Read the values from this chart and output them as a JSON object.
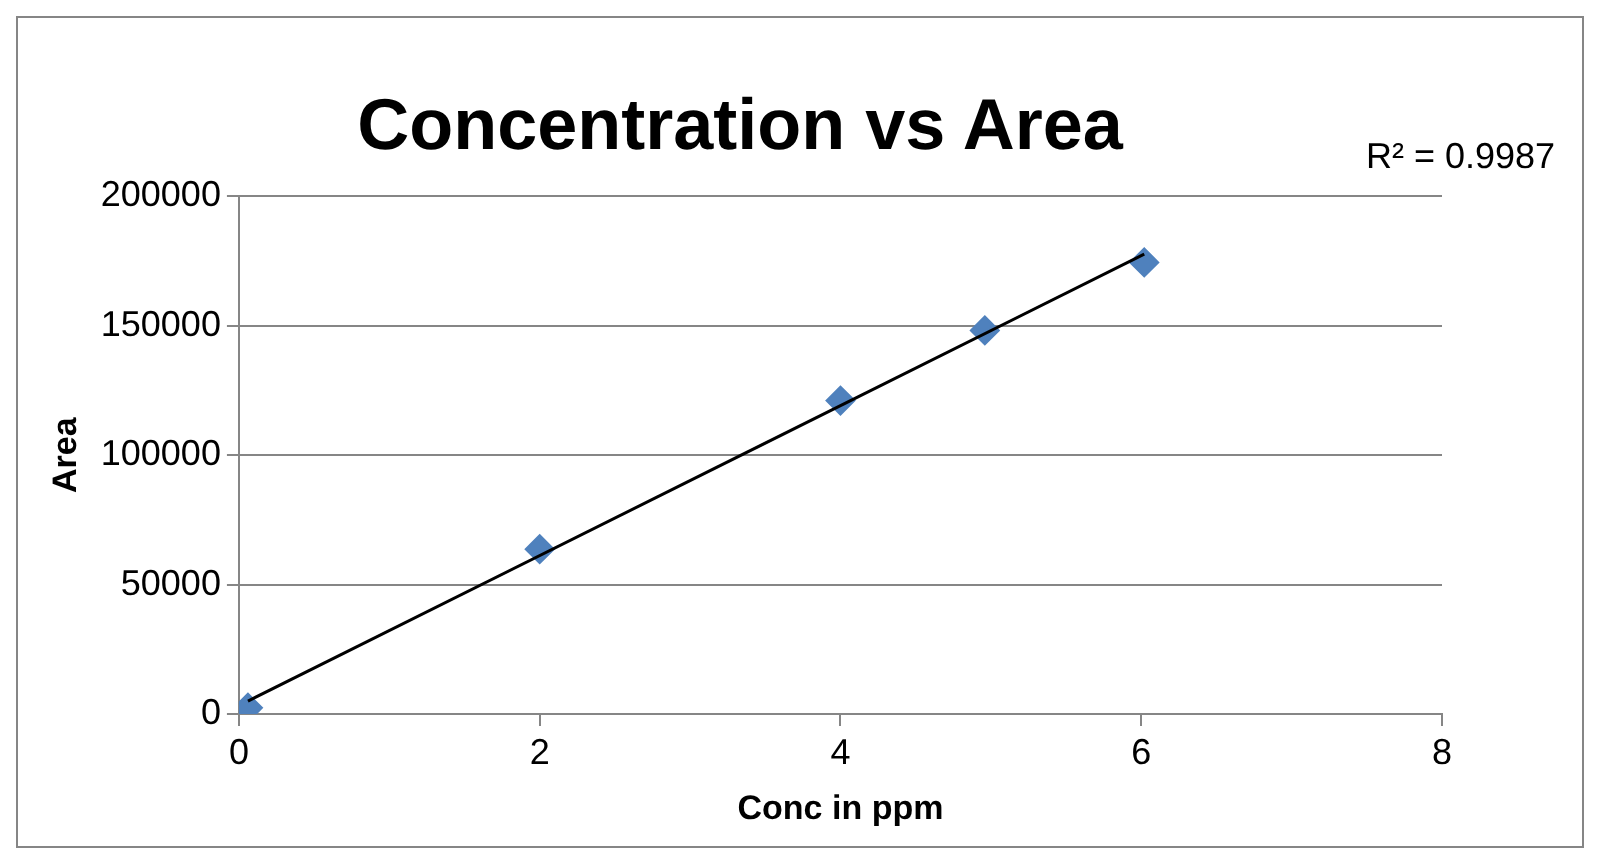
{
  "chart_data": {
    "type": "scatter",
    "title": "Concentration vs Area",
    "xlabel": "Conc in ppm",
    "ylabel": "Area",
    "annotations": [
      "R² = 0.9987"
    ],
    "series": [
      {
        "type": "line",
        "color": "#000000",
        "x": [
          0.06,
          6.02
        ],
        "values": [
          5000,
          177700
        ],
        "marker": "none"
      },
      {
        "type": "scatter",
        "color": "#4f81bd",
        "x": [
          0.06,
          2,
          4,
          4.96,
          6.02
        ],
        "values": [
          2400,
          63700,
          121100,
          148200,
          174500
        ],
        "marker": "diamond"
      }
    ],
    "xlim": [
      0,
      8
    ],
    "xticks": [
      0,
      2,
      4,
      6,
      8
    ],
    "ylim": [
      0,
      200000
    ],
    "yticks": [
      0,
      50000,
      100000,
      150000,
      200000
    ],
    "grid": "y",
    "legend": false
  }
}
